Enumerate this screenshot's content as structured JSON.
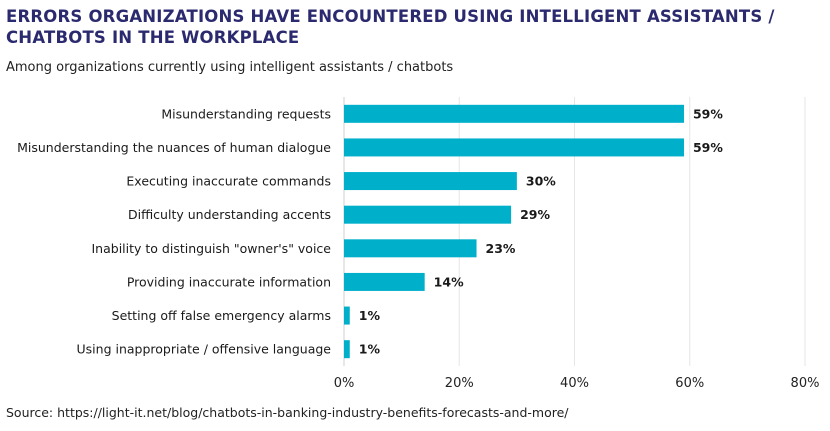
{
  "title": "ERRORS ORGANIZATIONS HAVE ENCOUNTERED USING INTELLIGENT ASSISTANTS / CHATBOTS IN THE WORKPLACE",
  "subtitle": "Among organizations currently using intelligent assistants / chatbots",
  "source": "Source: https://light-it.net/blog/chatbots-in-banking-industry-benefits-forecasts-and-more/",
  "colors": {
    "bar": "#00b0cb",
    "title": "#2b2a6e",
    "grid": "#e6e6e6"
  },
  "chart_data": {
    "type": "bar",
    "orientation": "horizontal",
    "categories": [
      "Misunderstanding requests",
      "Misunderstanding the nuances of human dialogue",
      "Executing inaccurate commands",
      "Difficulty understanding accents",
      "Inability to distinguish \"owner's\" voice",
      "Providing inaccurate information",
      "Setting off false emergency alarms",
      "Using inappropriate / offensive language"
    ],
    "values": [
      59,
      59,
      30,
      29,
      23,
      14,
      1,
      1
    ],
    "data_labels": [
      "59%",
      "59%",
      "30%",
      "29%",
      "23%",
      "14%",
      "1%",
      "1%"
    ],
    "xlim": [
      0,
      80
    ],
    "xticks": [
      0,
      20,
      40,
      60,
      80
    ],
    "xtick_labels": [
      "0%",
      "20%",
      "40%",
      "60%",
      "80%"
    ],
    "grid": true
  }
}
